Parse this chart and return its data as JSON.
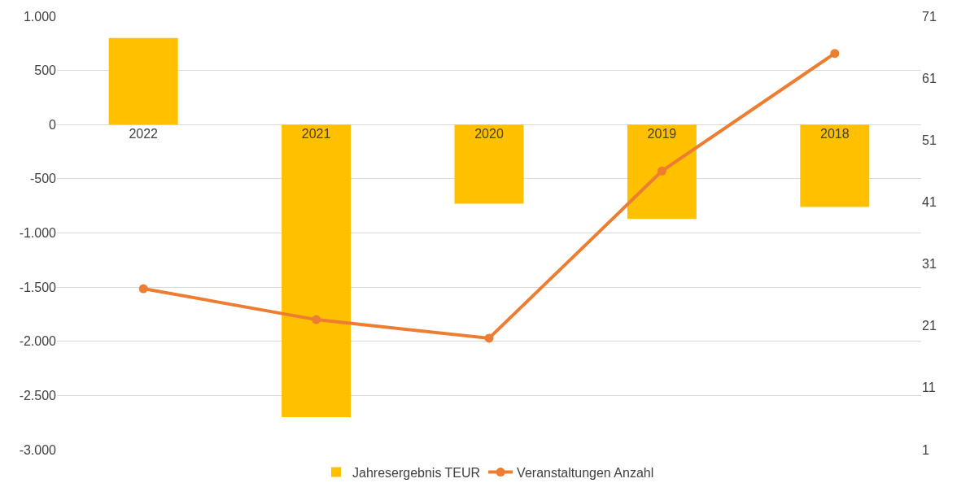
{
  "chart_data": {
    "type": "bar",
    "categories": [
      "2022",
      "2021",
      "2020",
      "2019",
      "2018"
    ],
    "series": [
      {
        "name": "Jahresergebnis TEUR",
        "color": "#ffc000",
        "values": [
          800,
          -2700,
          -730,
          -870,
          -760
        ]
      },
      {
        "name": "Veranstaltungen Anzahl",
        "type": "line",
        "axis": "y2",
        "color": "#ed7d31",
        "marker": "circle",
        "values": [
          27,
          22,
          19,
          46,
          65
        ]
      }
    ],
    "ylim": [
      -3000,
      1000
    ],
    "yticks": [
      {
        "value": -3000,
        "label": "-3.000"
      },
      {
        "value": -2500,
        "label": "-2.500"
      },
      {
        "value": -2000,
        "label": "-2.000"
      },
      {
        "value": -1500,
        "label": "-1.500"
      },
      {
        "value": -1000,
        "label": "-1.000"
      },
      {
        "value": -500,
        "label": "-500"
      },
      {
        "value": 0,
        "label": "0"
      },
      {
        "value": 500,
        "label": "500"
      },
      {
        "value": 1000,
        "label": "1.000"
      }
    ],
    "y2lim": [
      1,
      71
    ],
    "y2ticks": [
      1,
      11,
      21,
      31,
      41,
      51,
      61,
      71
    ],
    "grid": "y",
    "legend": "bottom"
  }
}
